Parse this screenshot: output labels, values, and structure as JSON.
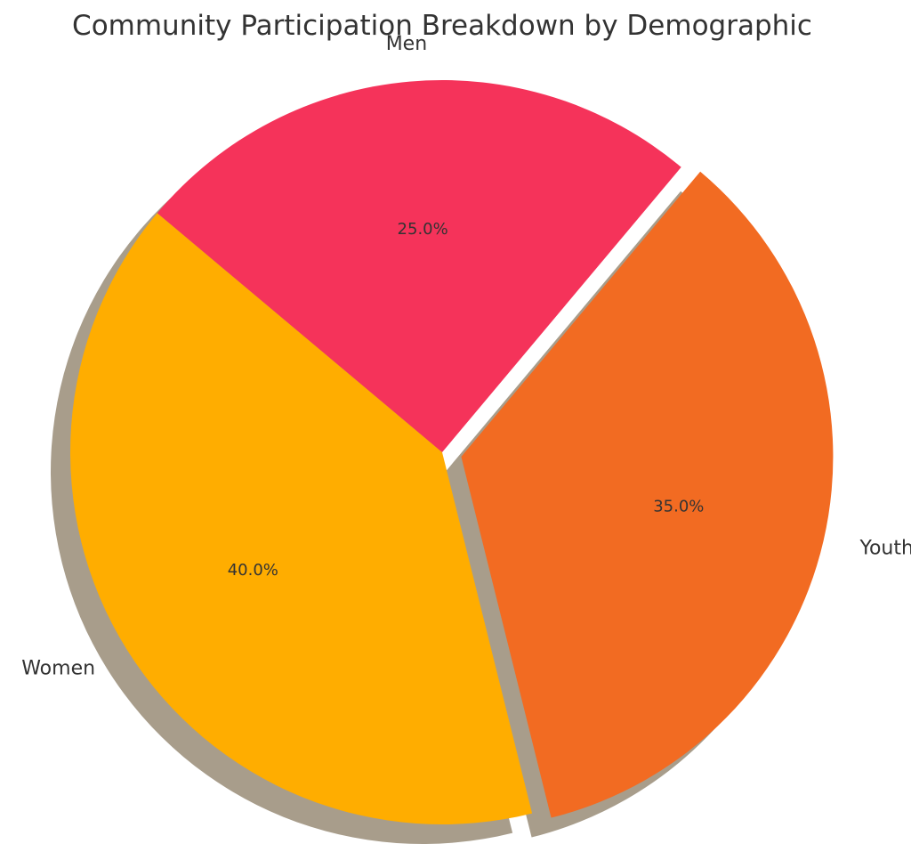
{
  "chart_data": {
    "type": "pie",
    "title": "Community Participation Breakdown by Demographic",
    "categories": [
      "Women",
      "Youth",
      "Men"
    ],
    "values": [
      40.0,
      35.0,
      25.0
    ],
    "percent_labels": [
      "40.0%",
      "35.0%",
      "25.0%"
    ],
    "colors": [
      "#FFAD00",
      "#F26B22",
      "#F5335A"
    ],
    "exploded": [
      "Youth"
    ],
    "shadow": true,
    "start_angle": 140,
    "direction": "counterclockwise",
    "legend": "none"
  }
}
